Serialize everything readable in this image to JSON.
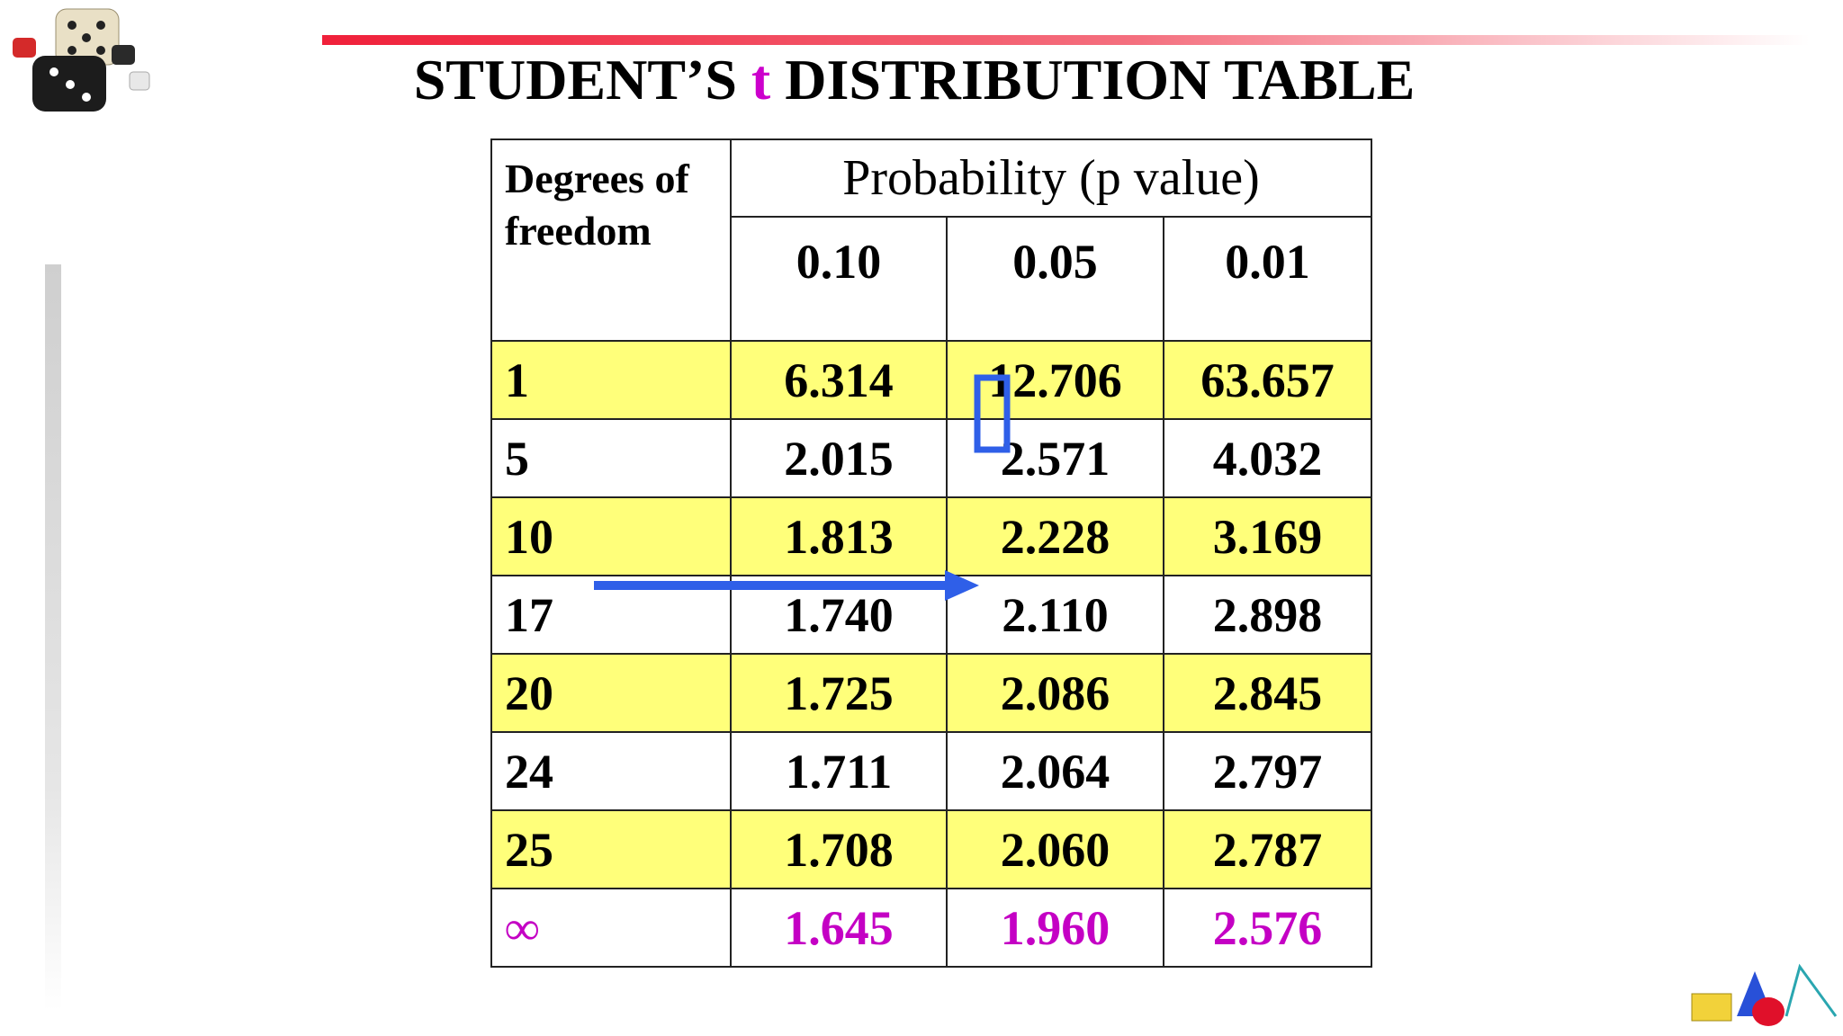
{
  "header": {
    "title": {
      "prefix": "STUDENT’S",
      "t": "t",
      "suffix": "DISTRIBUTION TABLE"
    }
  },
  "table": {
    "degrees_header": "Degrees of freedom",
    "probability_header": "Probability (p value)",
    "columns": [
      "0.10",
      "0.05",
      "0.01"
    ],
    "rows": [
      {
        "df": "1",
        "values": [
          "6.314",
          "12.706",
          "63.657"
        ]
      },
      {
        "df": "5",
        "values": [
          "2.015",
          "2.571",
          "4.032"
        ]
      },
      {
        "df": "10",
        "values": [
          "1.813",
          "2.228",
          "3.169"
        ]
      },
      {
        "df": "17",
        "values": [
          "1.740",
          "2.110",
          "2.898"
        ]
      },
      {
        "df": "20",
        "values": [
          "1.725",
          "2.086",
          "2.845"
        ]
      },
      {
        "df": "24",
        "values": [
          "1.711",
          "2.064",
          "2.797"
        ]
      },
      {
        "df": "25",
        "values": [
          "1.708",
          "2.060",
          "2.787"
        ]
      },
      {
        "df": "∞",
        "values": [
          "1.645",
          "1.960",
          "2.576"
        ]
      }
    ]
  }
}
